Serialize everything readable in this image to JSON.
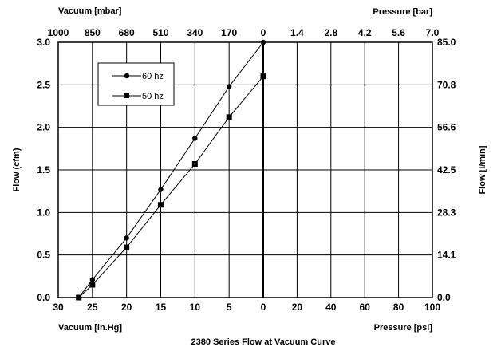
{
  "chart_data": {
    "type": "line",
    "title": "2380 Series Flow at Vacuum Curve",
    "x": [
      27,
      25,
      20,
      15,
      10,
      5,
      0
    ],
    "series": [
      {
        "name": "60 hz",
        "marker": "circle",
        "values": [
          0.0,
          0.21,
          0.7,
          1.27,
          1.87,
          2.48,
          3.0
        ]
      },
      {
        "name": "50 hz",
        "marker": "square",
        "values": [
          0.0,
          0.15,
          0.59,
          1.09,
          1.57,
          2.12,
          2.6
        ]
      }
    ],
    "xlim": [
      30,
      0
    ],
    "ylim": [
      0,
      3.0
    ],
    "grid": true,
    "legend_position": "top-left",
    "axes": {
      "left_title": "Flow (cfm)",
      "left_ticks": [
        "0.0",
        "0.5",
        "1.0",
        "1.5",
        "2.0",
        "2.5",
        "3.0"
      ],
      "right_title": "Flow [l/min]",
      "right_ticks": [
        "0.0",
        "14.1",
        "28.3",
        "42.5",
        "56.6",
        "70.8",
        "85.0"
      ],
      "bottom_left_title": "Vacuum [in.Hg]",
      "bottom_left_ticks": [
        "30",
        "25",
        "20",
        "15",
        "10",
        "5",
        "0"
      ],
      "bottom_right_title": "Pressure [psi]",
      "bottom_right_ticks": [
        "20",
        "40",
        "60",
        "80",
        "100"
      ],
      "top_left_title": "Vacuum [mbar]",
      "top_left_ticks": [
        "1000",
        "850",
        "680",
        "510",
        "340",
        "170",
        "0"
      ],
      "top_right_title": "Pressure [bar]",
      "top_right_ticks": [
        "1.4",
        "2.8",
        "4.2",
        "5.6",
        "7.0"
      ]
    },
    "colors": {
      "series": "#000000",
      "grid": "#000000"
    }
  }
}
